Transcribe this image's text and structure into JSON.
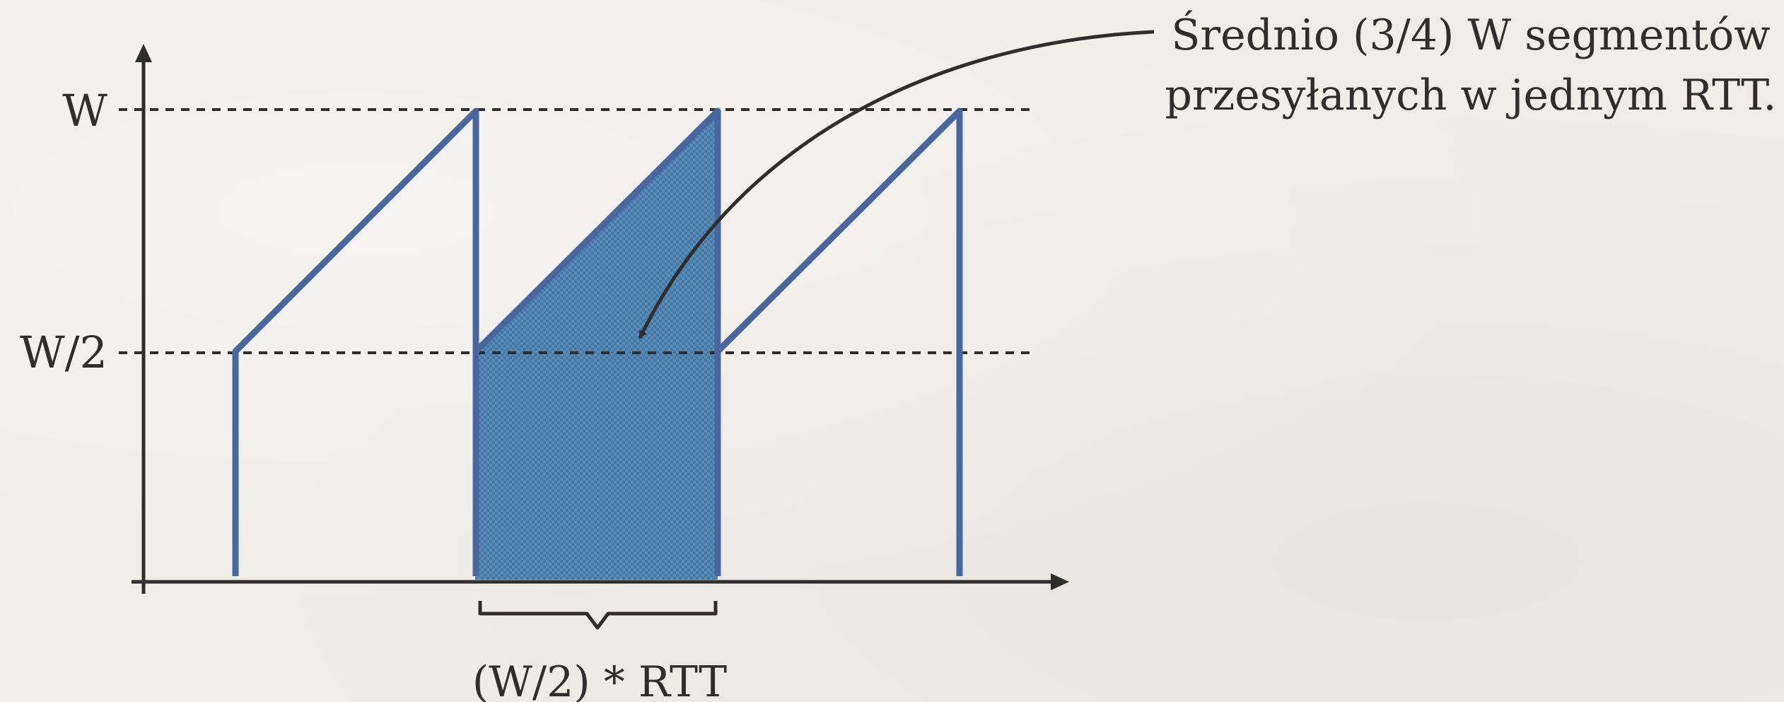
{
  "y_labels": {
    "w": "W",
    "w_half": "W/2"
  },
  "annotation": {
    "line1": "Średnio (3/4) W segmentów",
    "line2": "przesyłanych w jednym RTT."
  },
  "brace_label": "(W/2) * RTT",
  "colors": {
    "window_line": "#4a679d",
    "fill": "#4f86b6",
    "axis": "#2e2e2e"
  }
}
